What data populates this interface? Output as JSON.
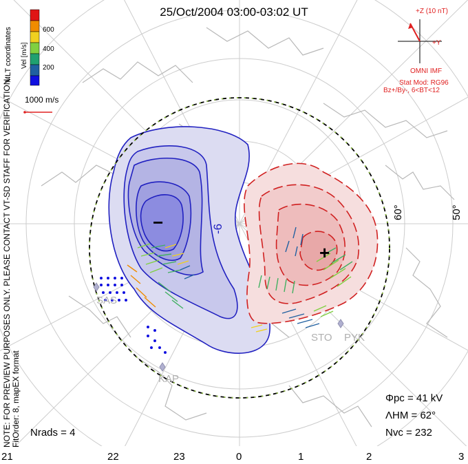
{
  "title": "25/Oct/2004 03:00-03:02 UT",
  "side_note": "NOTE: FOR PREVIEW PURPOSES ONLY. PLEASE CONTACT VT-SD STAFF FOR VERIFICATION.",
  "fit_order": "FitOrder: 8, mapEX format",
  "coord_label": "MLT coordinates",
  "colorbar": {
    "label": "Vel [m/s]",
    "ticks": [
      "600",
      "400",
      "200"
    ],
    "colors": [
      "#e01515",
      "#f08c00",
      "#f0d020",
      "#80d040",
      "#20a070",
      "#2060a0",
      "#1010e0"
    ]
  },
  "reference_vector": "1000 m/s",
  "imf": {
    "z_label": "+Z (10 nT)",
    "y_label": "+Y",
    "source": "OMNI IMF",
    "model": "Stat Mod: RG96",
    "condition": "Bz+/By-, 6<BT<12"
  },
  "latitude_labels": [
    "60°",
    "50°"
  ],
  "contour_label": "-6",
  "poles": {
    "negative": "−",
    "positive": "+"
  },
  "sites": [
    "SAS",
    "KAP",
    "STO",
    "PYK"
  ],
  "stats": {
    "phi_pc": "Φpc = 41 kV",
    "lambda_hm": "ΛHM = 62°",
    "n_vc": "Nvc = 232",
    "n_rads": "Nrads = 4"
  },
  "mlt_labels": [
    "21",
    "22",
    "23",
    "0",
    "1",
    "2",
    "3"
  ],
  "colors": {
    "dusk_cell": "#2020c0",
    "dawn_cell": "#d02020",
    "imf": "#e02020",
    "boundary_green": "#90c040"
  }
}
